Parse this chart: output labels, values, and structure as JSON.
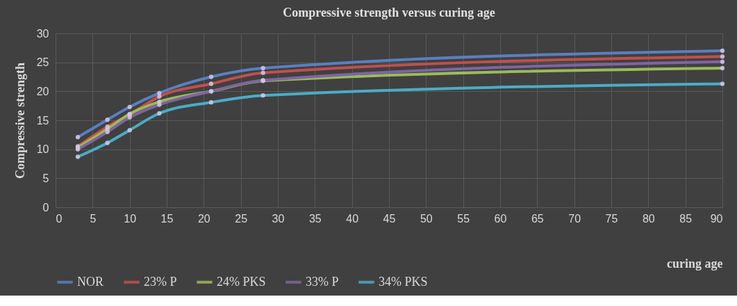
{
  "chart_data": {
    "type": "line",
    "title": "Compressive strength versus curing age",
    "xlabel": "curing age",
    "ylabel": "Compressive strength",
    "x": [
      3,
      7,
      10,
      14,
      21,
      28,
      90
    ],
    "series": [
      {
        "name": "NOR",
        "color": "#5b7fc0",
        "values": [
          12.1,
          15.1,
          17.3,
          19.7,
          22.5,
          24,
          27
        ]
      },
      {
        "name": "23% P",
        "color": "#c0504d",
        "values": [
          10.5,
          13.9,
          16.0,
          19.1,
          21.3,
          23.2,
          26
        ]
      },
      {
        "name": "24% PKS",
        "color": "#9bbb59",
        "values": [
          10.3,
          13.5,
          16.1,
          18.2,
          20.0,
          21.8,
          24
        ]
      },
      {
        "name": "33% P",
        "color": "#8064a2",
        "values": [
          10.0,
          13.0,
          15.5,
          17.7,
          20.0,
          21.9,
          25.1
        ]
      },
      {
        "name": "34% PKS",
        "color": "#4bacc6",
        "values": [
          8.7,
          11.1,
          13.3,
          16.2,
          18.1,
          19.3,
          21.3
        ]
      }
    ],
    "xlim": [
      0,
      90
    ],
    "xticks": [
      0,
      5,
      10,
      15,
      20,
      25,
      30,
      35,
      40,
      45,
      50,
      55,
      60,
      65,
      70,
      75,
      80,
      85,
      90
    ],
    "ylim": [
      0,
      30
    ],
    "yticks": [
      0,
      5,
      10,
      15,
      20,
      25,
      30
    ],
    "grid": true,
    "legend": "bottom",
    "marker": "circle",
    "line_style": "solid"
  }
}
